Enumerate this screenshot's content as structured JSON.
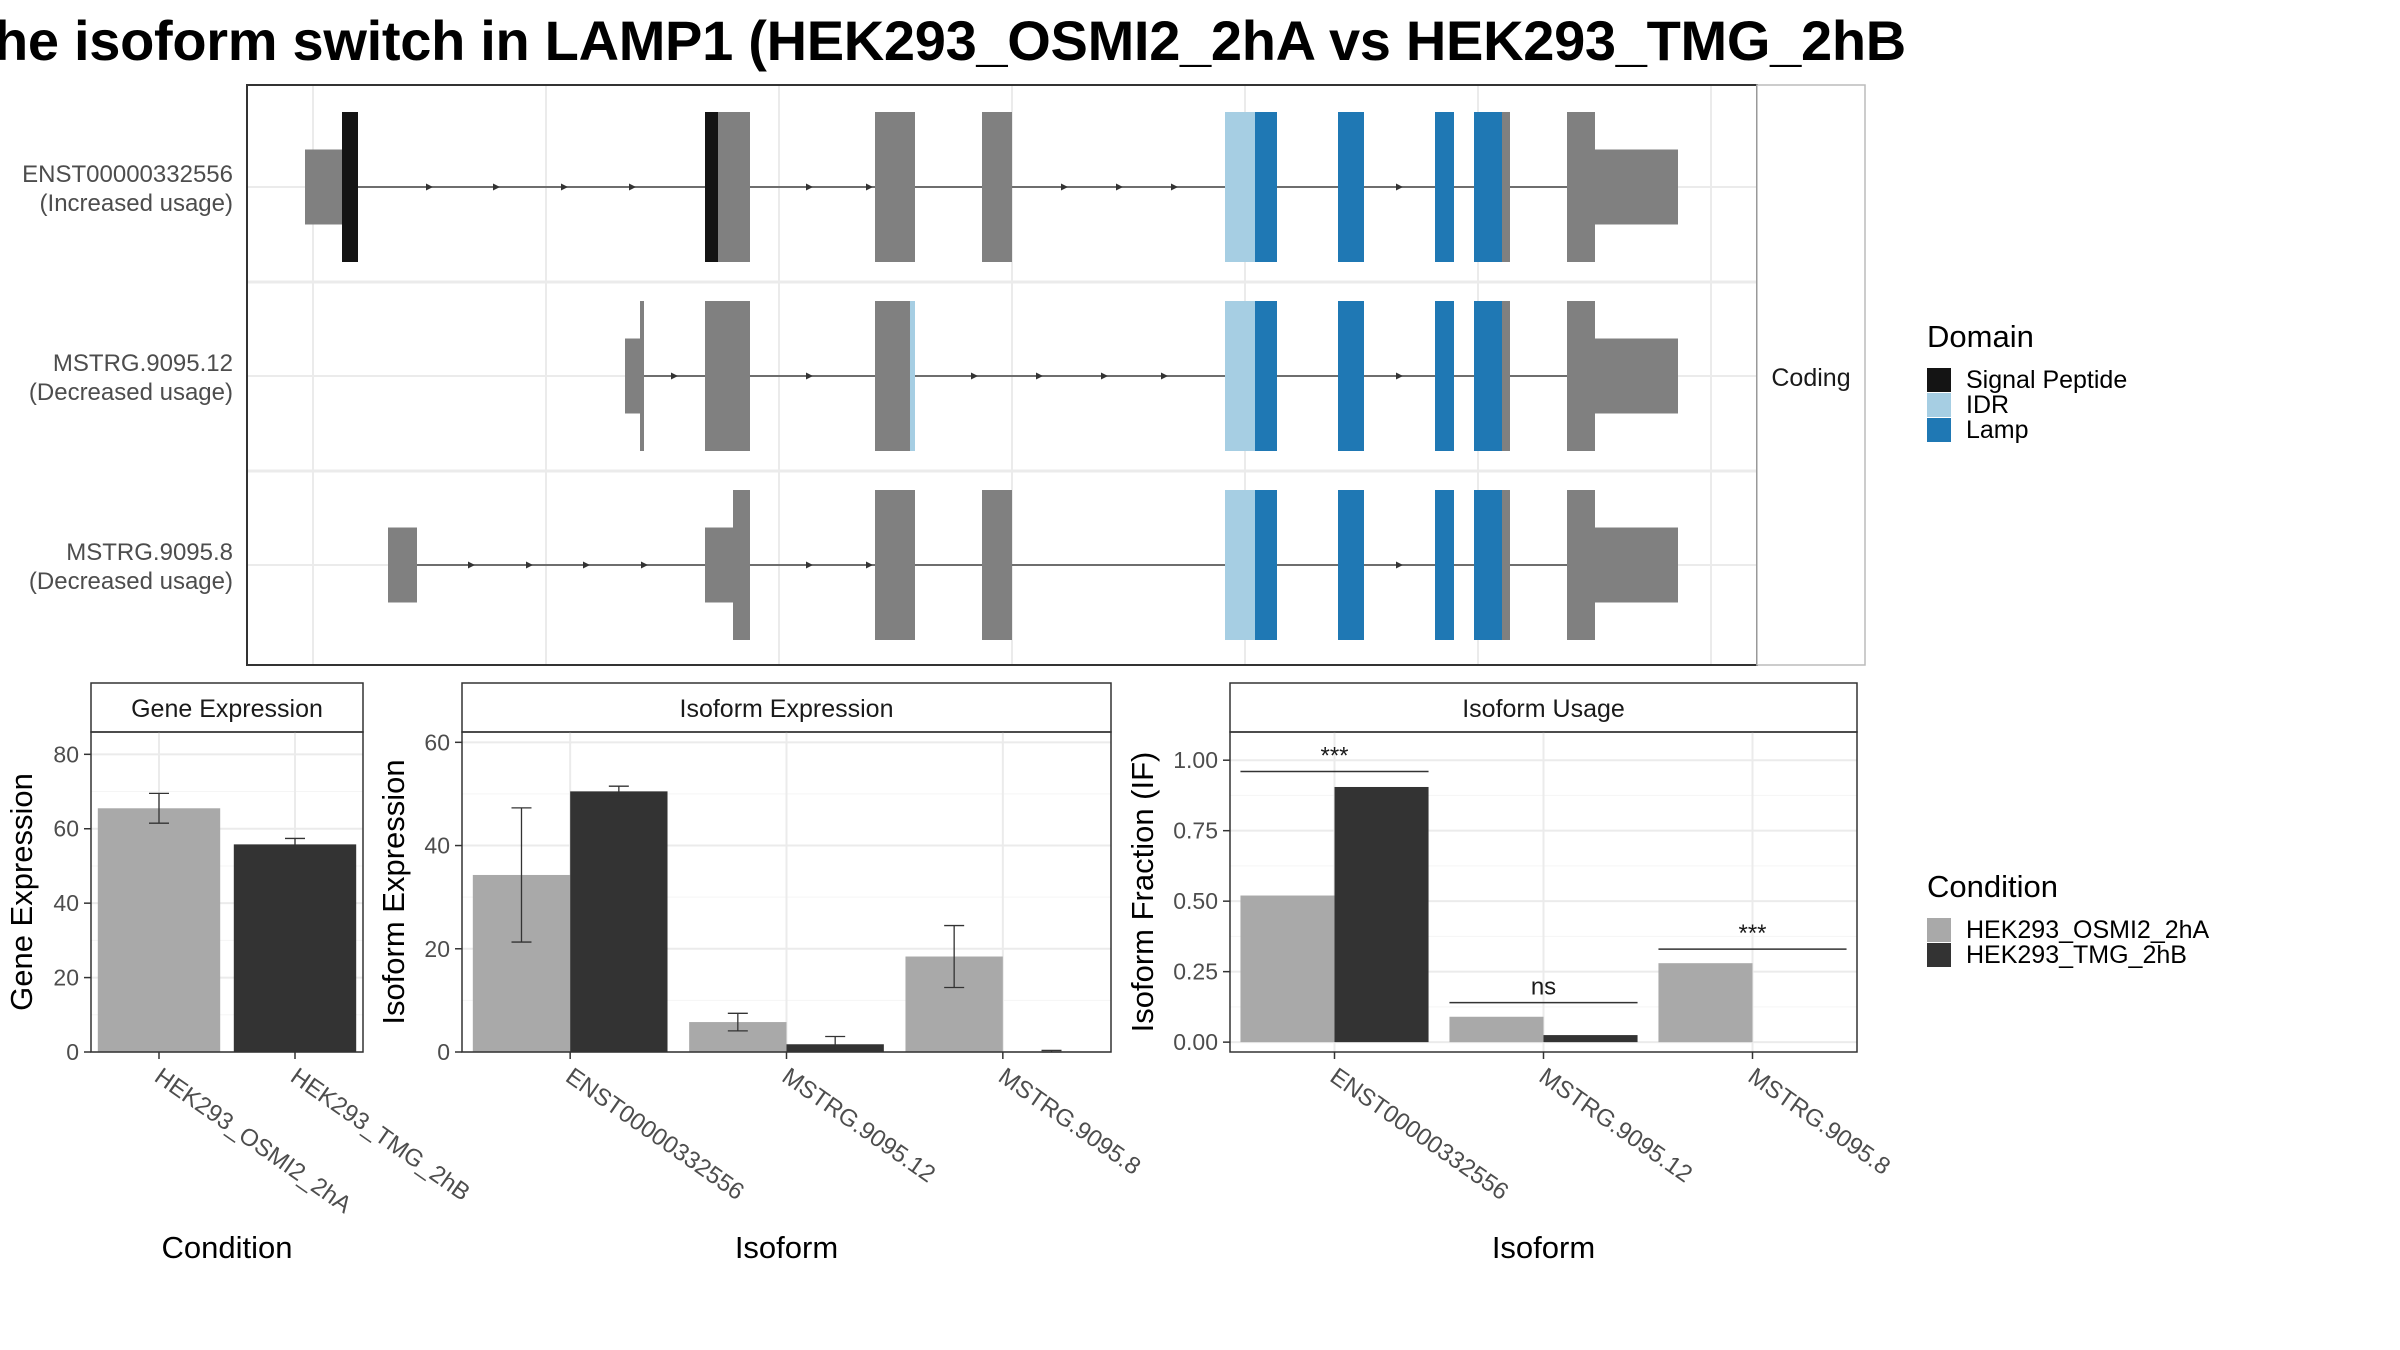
{
  "title": "he isoform switch in LAMP1 (HEK293_OSMI2_2hA vs HEK293_TMG_2hB",
  "colors": {
    "signal_peptide": "#141414",
    "idr": "#A6CEE3",
    "lamp": "#1F78B4",
    "exon": "#808080",
    "cond_a": "#A9A9A9",
    "cond_b": "#333333"
  },
  "chart_data": [
    {
      "type": "gene_structure",
      "facet": "Coding",
      "transcripts": [
        {
          "name": "ENST00000332556",
          "note": "(Increased usage)",
          "exons": [
            {
              "start": 305,
              "end": 342,
              "kind": "utr"
            },
            {
              "start": 342,
              "end": 358,
              "kind": "cds",
              "domain": "Signal Peptide"
            },
            {
              "start": 705,
              "end": 718,
              "kind": "cds",
              "domain": "Signal Peptide"
            },
            {
              "start": 718,
              "end": 750,
              "kind": "cds"
            },
            {
              "start": 875,
              "end": 915,
              "kind": "cds"
            },
            {
              "start": 982,
              "end": 1012,
              "kind": "cds"
            },
            {
              "start": 1225,
              "end": 1255,
              "kind": "cds",
              "domain": "IDR"
            },
            {
              "start": 1255,
              "end": 1277,
              "kind": "cds",
              "domain": "Lamp"
            },
            {
              "start": 1338,
              "end": 1364,
              "kind": "cds",
              "domain": "Lamp"
            },
            {
              "start": 1435,
              "end": 1454,
              "kind": "cds",
              "domain": "Lamp"
            },
            {
              "start": 1474,
              "end": 1502,
              "kind": "cds",
              "domain": "Lamp"
            },
            {
              "start": 1502,
              "end": 1510,
              "kind": "cds"
            },
            {
              "start": 1567,
              "end": 1595,
              "kind": "cds"
            },
            {
              "start": 1595,
              "end": 1678,
              "kind": "utr"
            }
          ],
          "arrows": [
            430,
            497,
            565,
            633,
            810,
            870,
            1065,
            1120,
            1175,
            1400
          ]
        },
        {
          "name": "MSTRG.9095.12",
          "note": "(Decreased usage)",
          "exons": [
            {
              "start": 625,
              "end": 640,
              "kind": "utr"
            },
            {
              "start": 640,
              "end": 644,
              "kind": "cds"
            },
            {
              "start": 705,
              "end": 750,
              "kind": "cds"
            },
            {
              "start": 875,
              "end": 910,
              "kind": "cds"
            },
            {
              "start": 910,
              "end": 915,
              "kind": "cds",
              "domain": "IDR"
            },
            {
              "start": 1225,
              "end": 1255,
              "kind": "cds",
              "domain": "IDR"
            },
            {
              "start": 1255,
              "end": 1277,
              "kind": "cds",
              "domain": "Lamp"
            },
            {
              "start": 1338,
              "end": 1364,
              "kind": "cds",
              "domain": "Lamp"
            },
            {
              "start": 1435,
              "end": 1454,
              "kind": "cds",
              "domain": "Lamp"
            },
            {
              "start": 1474,
              "end": 1502,
              "kind": "cds",
              "domain": "Lamp"
            },
            {
              "start": 1502,
              "end": 1510,
              "kind": "cds"
            },
            {
              "start": 1567,
              "end": 1595,
              "kind": "cds"
            },
            {
              "start": 1595,
              "end": 1678,
              "kind": "utr"
            }
          ],
          "arrows": [
            675,
            810,
            975,
            1040,
            1105,
            1165,
            1400
          ]
        },
        {
          "name": "MSTRG.9095.8",
          "note": "(Decreased usage)",
          "exons": [
            {
              "start": 388,
              "end": 417,
              "kind": "utr"
            },
            {
              "start": 705,
              "end": 733,
              "kind": "utr"
            },
            {
              "start": 733,
              "end": 750,
              "kind": "cds"
            },
            {
              "start": 875,
              "end": 915,
              "kind": "cds"
            },
            {
              "start": 982,
              "end": 1012,
              "kind": "cds"
            },
            {
              "start": 1225,
              "end": 1255,
              "kind": "cds",
              "domain": "IDR"
            },
            {
              "start": 1255,
              "end": 1277,
              "kind": "cds",
              "domain": "Lamp"
            },
            {
              "start": 1338,
              "end": 1364,
              "kind": "cds",
              "domain": "Lamp"
            },
            {
              "start": 1435,
              "end": 1454,
              "kind": "cds",
              "domain": "Lamp"
            },
            {
              "start": 1474,
              "end": 1502,
              "kind": "cds",
              "domain": "Lamp"
            },
            {
              "start": 1502,
              "end": 1510,
              "kind": "cds"
            },
            {
              "start": 1567,
              "end": 1595,
              "kind": "cds"
            },
            {
              "start": 1595,
              "end": 1678,
              "kind": "utr"
            }
          ],
          "arrows": [
            472,
            530,
            587,
            645,
            810,
            870,
            1400
          ]
        }
      ],
      "legend": {
        "title": "Domain",
        "entries": [
          {
            "label": "Signal Peptide",
            "color": "#141414"
          },
          {
            "label": "IDR",
            "color": "#A6CEE3"
          },
          {
            "label": "Lamp",
            "color": "#1F78B4"
          }
        ]
      }
    },
    {
      "type": "bar",
      "facet": "Gene Expression",
      "xlabel": "Condition",
      "ylabel": "Gene Expression",
      "ylim": [
        0,
        86
      ],
      "yticks": [
        "0",
        "20",
        "40",
        "60",
        "80"
      ],
      "categories": [
        "HEK293_OSMI2_2hA",
        "HEK293_TMG_2hB"
      ],
      "values": [
        65.5,
        55.8
      ],
      "error_low": [
        61.5,
        54.2
      ],
      "error_high": [
        69.5,
        57.4
      ]
    },
    {
      "type": "bar",
      "facet": "Isoform Expression",
      "xlabel": "Isoform",
      "ylabel": "Isoform Expression",
      "ylim": [
        0,
        62
      ],
      "yticks": [
        "0",
        "20",
        "40",
        "60"
      ],
      "categories": [
        "ENST00000332556",
        "MSTRG.9095.12",
        "MSTRG.9095.8"
      ],
      "series": [
        {
          "name": "HEK293_OSMI2_2hA",
          "values": [
            34.3,
            5.8,
            18.5
          ],
          "error_low": [
            21.3,
            4.1,
            12.5
          ],
          "error_high": [
            47.3,
            7.5,
            24.5
          ]
        },
        {
          "name": "HEK293_TMG_2hB",
          "values": [
            50.5,
            1.5,
            0.1
          ],
          "error_low": [
            49.5,
            0.2,
            0.0
          ],
          "error_high": [
            51.5,
            3.0,
            0.3
          ]
        }
      ]
    },
    {
      "type": "bar",
      "facet": "Isoform Usage",
      "xlabel": "Isoform",
      "ylabel": "Isoform Fraction (IF)",
      "ylim": [
        -0.035,
        1.1
      ],
      "yticks": [
        "0.00",
        "0.25",
        "0.50",
        "0.75",
        "1.00"
      ],
      "categories": [
        "ENST00000332556",
        "MSTRG.9095.12",
        "MSTRG.9095.8"
      ],
      "series": [
        {
          "name": "HEK293_OSMI2_2hA",
          "values": [
            0.52,
            0.09,
            0.28
          ]
        },
        {
          "name": "HEK293_TMG_2hB",
          "values": [
            0.905,
            0.025,
            0.0
          ]
        }
      ],
      "significance": [
        {
          "label": "***",
          "level": 0.96
        },
        {
          "label": "ns",
          "level": 0.14
        },
        {
          "label": "***",
          "level": 0.33
        }
      ]
    }
  ],
  "condition_legend": {
    "title": "Condition",
    "entries": [
      {
        "label": "HEK293_OSMI2_2hA",
        "color": "#A9A9A9"
      },
      {
        "label": "HEK293_TMG_2hB",
        "color": "#333333"
      }
    ]
  }
}
